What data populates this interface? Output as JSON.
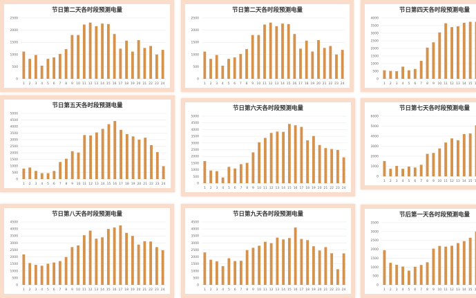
{
  "colors": {
    "bar": "#d5924c",
    "grid": "#e6e6e6",
    "frame": "#f9ddca"
  },
  "chart_data": [
    {
      "type": "bar",
      "title": "节日第二天各时段预测电量",
      "xlabel": "",
      "ylabel": "",
      "ylim": [
        0,
        2500
      ],
      "ystep": 500,
      "grid": true,
      "categories": [
        "1",
        "2",
        "3",
        "4",
        "5",
        "6",
        "7",
        "8",
        "9",
        "10",
        "11",
        "12",
        "13",
        "14",
        "15",
        "16",
        "17",
        "18",
        "19",
        "20",
        "21",
        "22",
        "23",
        "24"
      ],
      "values": [
        1120,
        820,
        980,
        540,
        820,
        880,
        1020,
        1220,
        1800,
        1800,
        2230,
        2310,
        2160,
        2270,
        2250,
        1840,
        1240,
        1570,
        1120,
        1590,
        1270,
        1350,
        1000,
        1190
      ]
    },
    {
      "type": "bar",
      "title": "节日第二天各时段预测电量",
      "xlabel": "",
      "ylabel": "",
      "ylim": [
        0,
        2500
      ],
      "ystep": 500,
      "grid": true,
      "categories": [
        "1",
        "2",
        "3",
        "4",
        "5",
        "6",
        "7",
        "8",
        "9",
        "10",
        "11",
        "12",
        "13",
        "14",
        "15",
        "16",
        "17",
        "18",
        "19",
        "20",
        "21",
        "22",
        "23",
        "24"
      ],
      "values": [
        1120,
        820,
        980,
        540,
        820,
        880,
        1020,
        1220,
        1800,
        1800,
        2230,
        2310,
        2160,
        2270,
        2250,
        1840,
        1240,
        1570,
        1120,
        1590,
        1270,
        1350,
        1000,
        1190
      ]
    },
    {
      "type": "bar",
      "title": "节日第四天各时段预测电量",
      "xlabel": "",
      "ylabel": "",
      "ylim": [
        0,
        4000
      ],
      "ystep": 500,
      "grid": true,
      "categories": [
        "1",
        "2",
        "3",
        "4",
        "5",
        "6",
        "7",
        "8",
        "9",
        "10",
        "11",
        "12",
        "13",
        "14",
        "15",
        "16"
      ],
      "values": [
        560,
        520,
        500,
        800,
        560,
        650,
        1180,
        2050,
        2400,
        3050,
        3650,
        3400,
        3450,
        3680,
        3750,
        3750
      ]
    },
    {
      "type": "bar",
      "title": "节日第五天各时段预测电量",
      "xlabel": "",
      "ylabel": "",
      "ylim": [
        0,
        5000
      ],
      "ystep": 500,
      "grid": true,
      "categories": [
        "1",
        "2",
        "3",
        "4",
        "5",
        "6",
        "7",
        "8",
        "9",
        "10",
        "11",
        "12",
        "13",
        "14",
        "15",
        "16",
        "17",
        "18",
        "19",
        "20",
        "21",
        "22",
        "23",
        "24"
      ],
      "values": [
        800,
        880,
        620,
        450,
        450,
        620,
        1300,
        1550,
        2120,
        2020,
        3350,
        3320,
        3550,
        3820,
        4180,
        4420,
        3750,
        3420,
        3250,
        3000,
        3150,
        2580,
        2050,
        980
      ]
    },
    {
      "type": "bar",
      "title": "节日第六天各时段预测电量",
      "xlabel": "",
      "ylabel": "",
      "ylim": [
        0,
        5000
      ],
      "ystep": 500,
      "grid": true,
      "categories": [
        "1",
        "2",
        "3",
        "4",
        "5",
        "6",
        "7",
        "8",
        "9",
        "10",
        "11",
        "12",
        "13",
        "14",
        "15",
        "16",
        "17",
        "18",
        "19",
        "20",
        "21",
        "22",
        "23",
        "24"
      ],
      "values": [
        1650,
        950,
        900,
        430,
        1220,
        1100,
        1420,
        1520,
        2300,
        3050,
        3380,
        3750,
        3850,
        3830,
        4420,
        4320,
        4200,
        3200,
        3520,
        2850,
        2620,
        2550,
        2480,
        1930
      ]
    },
    {
      "type": "bar",
      "title": "节日第七天各时段预测电量",
      "xlabel": "",
      "ylabel": "",
      "ylim": [
        0,
        6000
      ],
      "ystep": 1000,
      "grid": true,
      "categories": [
        "1",
        "2",
        "3",
        "4",
        "5",
        "6",
        "7",
        "8",
        "9",
        "10",
        "11",
        "12",
        "13",
        "14",
        "15",
        "16"
      ],
      "values": [
        1520,
        750,
        1040,
        750,
        970,
        880,
        1150,
        2240,
        2330,
        2780,
        3370,
        3780,
        3600,
        4210,
        4280,
        5090
      ]
    },
    {
      "type": "bar",
      "title": "节日第八天各时段预测电量",
      "xlabel": "",
      "ylabel": "",
      "ylim": [
        0,
        4500
      ],
      "ystep": 500,
      "grid": true,
      "categories": [
        "1",
        "2",
        "3",
        "4",
        "5",
        "6",
        "7",
        "8",
        "9",
        "10",
        "11",
        "12",
        "13",
        "14",
        "15",
        "16",
        "17",
        "18",
        "19",
        "20",
        "21",
        "22",
        "23",
        "24"
      ],
      "values": [
        2180,
        1560,
        1430,
        1370,
        1510,
        1600,
        1700,
        1990,
        2700,
        2820,
        3550,
        3880,
        3300,
        3400,
        4000,
        4100,
        4250,
        3720,
        3500,
        2880,
        3120,
        3100,
        2700,
        2480
      ]
    },
    {
      "type": "bar",
      "title": "节日第九天各时段预测电量",
      "xlabel": "",
      "ylabel": "",
      "ylim": [
        0,
        4500
      ],
      "ystep": 500,
      "grid": true,
      "categories": [
        "1",
        "2",
        "3",
        "4",
        "5",
        "6",
        "7",
        "8",
        "9",
        "10",
        "11",
        "12",
        "13",
        "14",
        "15",
        "16",
        "17",
        "18",
        "19",
        "20",
        "21",
        "22",
        "23",
        "24"
      ],
      "values": [
        2320,
        1800,
        1680,
        1340,
        1900,
        1700,
        1720,
        2480,
        2650,
        2800,
        3080,
        2980,
        3380,
        3250,
        3350,
        4100,
        3280,
        3200,
        2760,
        2460,
        2700,
        2260,
        1120,
        2250
      ]
    },
    {
      "type": "bar",
      "title": "节后第一天各时段预测电量",
      "xlabel": "",
      "ylabel": "",
      "ylim": [
        0,
        3500
      ],
      "ystep": 500,
      "grid": true,
      "categories": [
        "1",
        "2",
        "3",
        "4",
        "5",
        "6",
        "7",
        "8",
        "9",
        "10",
        "11",
        "12",
        "13",
        "14",
        "15",
        "16"
      ],
      "values": [
        1950,
        1240,
        1130,
        1030,
        800,
        1020,
        1120,
        1270,
        2040,
        2190,
        2150,
        2200,
        2350,
        2460,
        2650,
        3000
      ]
    }
  ]
}
